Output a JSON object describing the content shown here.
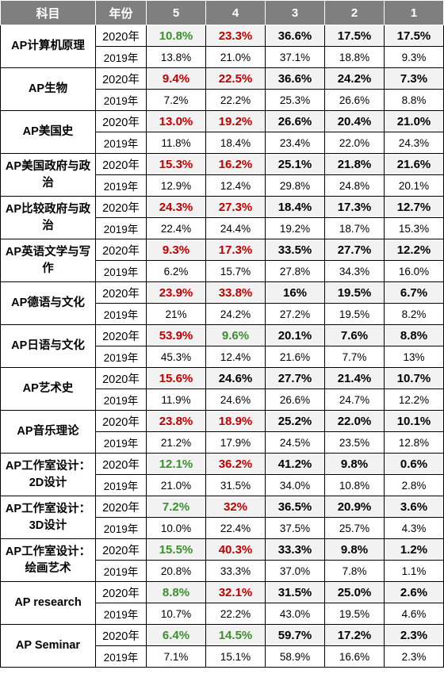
{
  "headers": [
    "科目",
    "年份",
    "5",
    "4",
    "3",
    "2",
    "1"
  ],
  "colors": {
    "header_bg": "#7f7f7f",
    "highlight_red": "#c00000",
    "highlight_green": "#3c8f2e",
    "row_2020_bg": "#f2f2f2"
  },
  "subjects": [
    {
      "name": "AP计算机原理",
      "rows": [
        {
          "year": "2020年",
          "values": [
            "10.8%",
            "23.3%",
            "36.6%",
            "17.5%",
            "17.5%"
          ],
          "colors": [
            "green",
            "red",
            "",
            "",
            ""
          ]
        },
        {
          "year": "2019年",
          "values": [
            "13.8%",
            "21.0%",
            "37.1%",
            "18.8%",
            "9.3%"
          ],
          "colors": [
            "",
            "",
            "",
            "",
            ""
          ]
        }
      ]
    },
    {
      "name": "AP生物",
      "rows": [
        {
          "year": "2020年",
          "values": [
            "9.4%",
            "22.5%",
            "36.6%",
            "24.2%",
            "7.3%"
          ],
          "colors": [
            "red",
            "red",
            "",
            "",
            ""
          ]
        },
        {
          "year": "2019年",
          "values": [
            "7.2%",
            "22.2%",
            "25.3%",
            "26.6%",
            "8.8%"
          ],
          "colors": [
            "",
            "",
            "",
            "",
            ""
          ]
        }
      ]
    },
    {
      "name": "AP美国史",
      "rows": [
        {
          "year": "2020年",
          "values": [
            "13.0%",
            "19.2%",
            "26.6%",
            "20.4%",
            "21.0%"
          ],
          "colors": [
            "red",
            "red",
            "",
            "",
            ""
          ]
        },
        {
          "year": "2019年",
          "values": [
            "11.8%",
            "18.4%",
            "23.4%",
            "22.0%",
            "24.3%"
          ],
          "colors": [
            "",
            "",
            "",
            "",
            ""
          ]
        }
      ]
    },
    {
      "name": "AP美国政府与政治",
      "rows": [
        {
          "year": "2020年",
          "values": [
            "15.3%",
            "16.2%",
            "25.1%",
            "21.8%",
            "21.6%"
          ],
          "colors": [
            "red",
            "red",
            "",
            "",
            ""
          ]
        },
        {
          "year": "2019年",
          "values": [
            "12.9%",
            "12.4%",
            "29.8%",
            "24.8%",
            "20.1%"
          ],
          "colors": [
            "",
            "",
            "",
            "",
            ""
          ]
        }
      ]
    },
    {
      "name": "AP比较政府与政治",
      "rows": [
        {
          "year": "2020年",
          "values": [
            "24.3%",
            "27.3%",
            "18.4%",
            "17.3%",
            "12.7%"
          ],
          "colors": [
            "red",
            "red",
            "",
            "",
            ""
          ]
        },
        {
          "year": "2019年",
          "values": [
            "22.4%",
            "24.4%",
            "19.2%",
            "18.7%",
            "15.3%"
          ],
          "colors": [
            "",
            "",
            "",
            "",
            ""
          ]
        }
      ]
    },
    {
      "name": "AP英语文学与写作",
      "rows": [
        {
          "year": "2020年",
          "values": [
            "9.3%",
            "17.3%",
            "33.5%",
            "27.7%",
            "12.2%"
          ],
          "colors": [
            "red",
            "red",
            "",
            "",
            ""
          ]
        },
        {
          "year": "2019年",
          "values": [
            "6.2%",
            "15.7%",
            "27.8%",
            "34.3%",
            "16.0%"
          ],
          "colors": [
            "",
            "",
            "",
            "",
            ""
          ]
        }
      ]
    },
    {
      "name": "AP德语与文化",
      "rows": [
        {
          "year": "2020年",
          "values": [
            "23.9%",
            "33.8%",
            "16%",
            "19.5%",
            "6.7%"
          ],
          "colors": [
            "red",
            "red",
            "",
            "",
            ""
          ]
        },
        {
          "year": "2019年",
          "values": [
            "21%",
            "24.2%",
            "27.2%",
            "19.5%",
            "8.2%"
          ],
          "colors": [
            "",
            "",
            "",
            "",
            ""
          ]
        }
      ]
    },
    {
      "name": "AP日语与文化",
      "rows": [
        {
          "year": "2020年",
          "values": [
            "53.9%",
            "9.6%",
            "20.1%",
            "7.6%",
            "8.8%"
          ],
          "colors": [
            "red",
            "green",
            "",
            "",
            ""
          ]
        },
        {
          "year": "2019年",
          "values": [
            "45.3%",
            "12.4%",
            "21.6%",
            "7.7%",
            "13%"
          ],
          "colors": [
            "",
            "",
            "",
            "",
            ""
          ]
        }
      ]
    },
    {
      "name": "AP艺术史",
      "rows": [
        {
          "year": "2020年",
          "values": [
            "15.6%",
            "24.6%",
            "27.7%",
            "21.4%",
            "10.7%"
          ],
          "colors": [
            "red",
            "",
            "",
            "",
            ""
          ]
        },
        {
          "year": "2019年",
          "values": [
            "11.9%",
            "24.6%",
            "26.6%",
            "24.7%",
            "12.2%"
          ],
          "colors": [
            "",
            "",
            "",
            "",
            ""
          ]
        }
      ]
    },
    {
      "name": "AP音乐理论",
      "rows": [
        {
          "year": "2020年",
          "values": [
            "23.8%",
            "18.9%",
            "25.2%",
            "22.0%",
            "10.1%"
          ],
          "colors": [
            "red",
            "red",
            "",
            "",
            ""
          ]
        },
        {
          "year": "2019年",
          "values": [
            "21.2%",
            "17.9%",
            "24.5%",
            "23.5%",
            "12.8%"
          ],
          "colors": [
            "",
            "",
            "",
            "",
            ""
          ]
        }
      ]
    },
    {
      "name": "AP工作室设计：2D设计",
      "rows": [
        {
          "year": "2020年",
          "values": [
            "12.1%",
            "36.2%",
            "41.2%",
            "9.8%",
            "0.6%"
          ],
          "colors": [
            "green",
            "red",
            "",
            "",
            ""
          ]
        },
        {
          "year": "2019年",
          "values": [
            "21.0%",
            "31.5%",
            "34.0%",
            "10.8%",
            "2.8%"
          ],
          "colors": [
            "",
            "",
            "",
            "",
            ""
          ]
        }
      ]
    },
    {
      "name": "AP工作室设计：3D设计",
      "rows": [
        {
          "year": "2020年",
          "values": [
            "7.2%",
            "32%",
            "36.5%",
            "20.9%",
            "3.6%"
          ],
          "colors": [
            "green",
            "red",
            "",
            "",
            ""
          ]
        },
        {
          "year": "2019年",
          "values": [
            "10.0%",
            "22.4%",
            "37.5%",
            "25.7%",
            "4.3%"
          ],
          "colors": [
            "",
            "",
            "",
            "",
            ""
          ]
        }
      ]
    },
    {
      "name": "AP工作室设计：绘画艺术",
      "rows": [
        {
          "year": "2020年",
          "values": [
            "15.5%",
            "40.3%",
            "33.3%",
            "9.8%",
            "1.2%"
          ],
          "colors": [
            "green",
            "red",
            "",
            "",
            ""
          ]
        },
        {
          "year": "2019年",
          "values": [
            "20.8%",
            "33.3%",
            "37.0%",
            "7.8%",
            "1.1%"
          ],
          "colors": [
            "",
            "",
            "",
            "",
            ""
          ]
        }
      ]
    },
    {
      "name": "AP research",
      "rows": [
        {
          "year": "2020年",
          "values": [
            "8.8%",
            "32.1%",
            "31.5%",
            "25.0%",
            "2.6%"
          ],
          "colors": [
            "green",
            "red",
            "",
            "",
            ""
          ]
        },
        {
          "year": "2019年",
          "values": [
            "10.7%",
            "22.2%",
            "43.0%",
            "19.5%",
            "4.6%"
          ],
          "colors": [
            "",
            "",
            "",
            "",
            ""
          ]
        }
      ]
    },
    {
      "name": "AP Seminar",
      "rows": [
        {
          "year": "2020年",
          "values": [
            "6.4%",
            "14.5%",
            "59.7%",
            "17.2%",
            "2.3%"
          ],
          "colors": [
            "green",
            "green",
            "",
            "",
            ""
          ]
        },
        {
          "year": "2019年",
          "values": [
            "7.1%",
            "15.1%",
            "58.9%",
            "16.6%",
            "2.3%"
          ],
          "colors": [
            "",
            "",
            "",
            "",
            ""
          ]
        }
      ]
    }
  ]
}
